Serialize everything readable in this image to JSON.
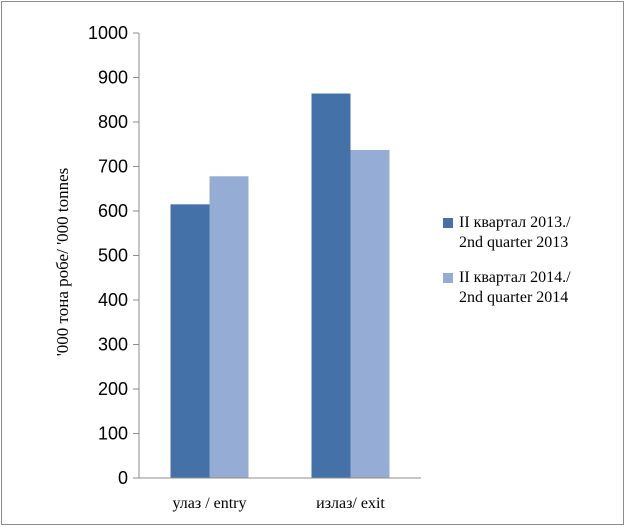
{
  "chart_data": {
    "type": "bar",
    "categories": [
      "улаз / entry",
      "излаз/ exit"
    ],
    "series": [
      {
        "name": "II квартал 2013./ 2nd quarter 2013",
        "name_lines": [
          "II квартал 2013./",
          "2nd quarter 2013"
        ],
        "values": [
          615,
          864
        ],
        "color": "#4472a8"
      },
      {
        "name": "II квартал 2014./ 2nd quarter 2014",
        "name_lines": [
          "II квартал 2014./",
          "2nd quarter 2014"
        ],
        "values": [
          678,
          737
        ],
        "color": "#95acd4"
      }
    ],
    "ylabel": "'000 тона робе/ '000 tonnes",
    "xlabel": "",
    "ylim": [
      0,
      1000
    ],
    "yticks": [
      0,
      100,
      200,
      300,
      400,
      500,
      600,
      700,
      800,
      900,
      1000
    ],
    "axis_color": "#8c8c8c",
    "legend_position": "right"
  }
}
